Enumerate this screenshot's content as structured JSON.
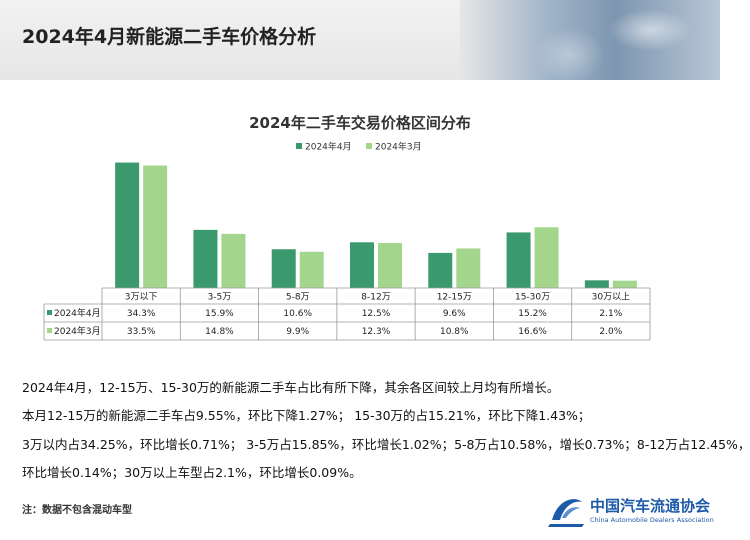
{
  "page": {
    "title": "2024年4月新能源二手车价格分析"
  },
  "chart_data": {
    "type": "bar",
    "title": "2024年二手车交易价格区间分布",
    "categories": [
      "3万以下",
      "3-5万",
      "5-8万",
      "8-12万",
      "12-15万",
      "15-30万",
      "30万以上"
    ],
    "series": [
      {
        "name": "2024年4月",
        "values": [
          34.3,
          15.9,
          10.6,
          12.5,
          9.6,
          15.2,
          2.1
        ],
        "labels": [
          "34.3%",
          "15.9%",
          "10.6%",
          "12.5%",
          "9.6%",
          "15.2%",
          "2.1%"
        ],
        "color": "#3a9a6e"
      },
      {
        "name": "2024年3月",
        "values": [
          33.5,
          14.8,
          9.9,
          12.3,
          10.8,
          16.6,
          2.0
        ],
        "labels": [
          "33.5%",
          "14.8%",
          "9.9%",
          "12.3%",
          "10.8%",
          "16.6%",
          "2.0%"
        ],
        "color": "#a3d68c"
      }
    ],
    "ylim": [
      0,
      35
    ],
    "legend": "top-center",
    "grid": false
  },
  "text": {
    "p1": "2024年4月，12-15万、15-30万的新能源二手车占比有所下降，其余各区间较上月均有所增长。",
    "p2": "本月12-15万的新能源二手车占9.55%，环比下降1.27%； 15-30万的占15.21%，环比下降1.43%；",
    "p3": "3万以内占34.25%，环比增长0.71%； 3-5万占15.85%，环比增长1.02%；5-8万占10.58%，增长0.73%；8-12万占12.45%，",
    "p4": "环比增长0.14%；30万以上车型占2.1%，环比增长0.09%。",
    "note": "注：数据不包含混动车型"
  },
  "logo": {
    "name_cn": "中国汽车流通协会",
    "name_en": "China Automobile Dealers Association"
  }
}
